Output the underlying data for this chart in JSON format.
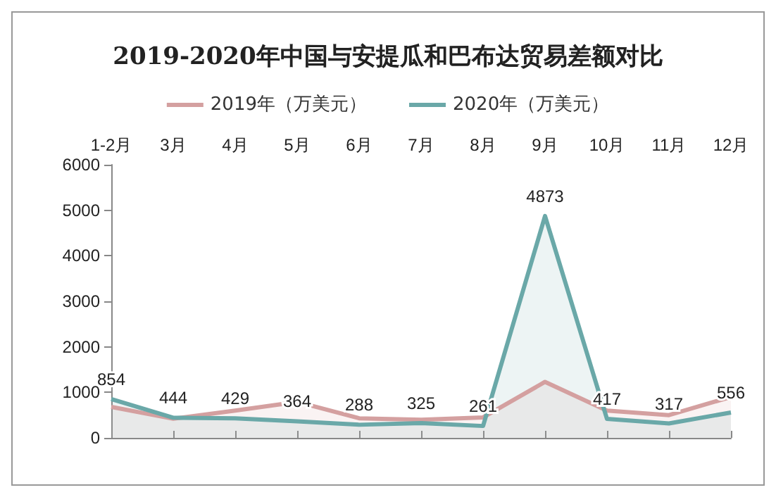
{
  "chart_data": {
    "type": "area",
    "title": "2019-2020年中国与安提瓜和巴布达贸易差额对比",
    "categories": [
      "1-2月",
      "3月",
      "4月",
      "5月",
      "6月",
      "7月",
      "8月",
      "9月",
      "10月",
      "11月",
      "12月"
    ],
    "series": [
      {
        "name": "2019年（万美元）",
        "color": "#d4a0a0",
        "values": [
          680,
          420,
          600,
          790,
          430,
          400,
          450,
          1230,
          600,
          500,
          900
        ]
      },
      {
        "name": "2020年（万美元）",
        "color": "#6aa8a8",
        "values": [
          854,
          444,
          429,
          364,
          288,
          325,
          261,
          4873,
          417,
          317,
          556
        ],
        "value_labels": [
          "854",
          "444",
          "429",
          "364",
          "288",
          "325",
          "261",
          "4873",
          "417",
          "317",
          "556"
        ]
      }
    ],
    "ylim": [
      0,
      6000
    ],
    "yticks": [
      0,
      1000,
      2000,
      3000,
      4000,
      5000,
      6000
    ],
    "grid": false,
    "legend": "top",
    "marker": "none"
  }
}
